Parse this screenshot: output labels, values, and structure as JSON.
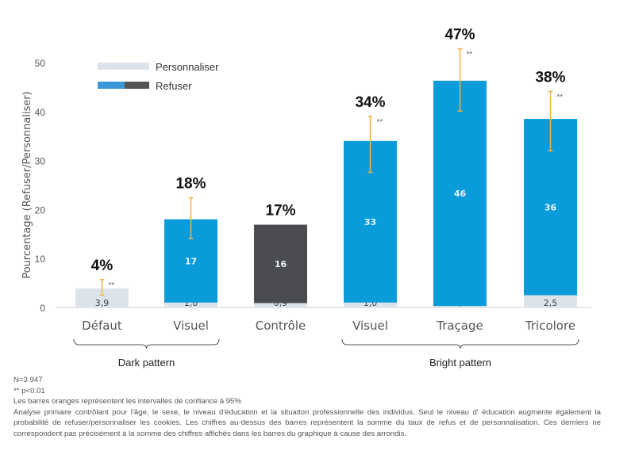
{
  "chart_data": {
    "type": "bar",
    "stacked": true,
    "ylabel": "Pourcentage (Refuser/Personnaliser)",
    "ylim": [
      0,
      50
    ],
    "yticks": [
      0,
      10,
      20,
      30,
      40,
      50
    ],
    "grid": false,
    "legend_position": "top-left",
    "categories": [
      "Défaut",
      "Visuel",
      "Contrôle",
      "Visuel",
      "Traçage",
      "Tricolore"
    ],
    "groups": [
      {
        "label": "Dark pattern",
        "categories": [
          0,
          1
        ]
      },
      {
        "label": "Bright pattern",
        "categories": [
          3,
          4,
          5
        ]
      }
    ],
    "series": [
      {
        "name": "Personnaliser",
        "color": "#dce3ea",
        "values": [
          3.9,
          1.0,
          0.9,
          1.0,
          0.3,
          2.5
        ],
        "labels": [
          "3,9",
          "1,0",
          "0,9",
          "1,0",
          "0,3",
          "2,5"
        ]
      },
      {
        "name": "Refuser",
        "color": "#0a9bdb",
        "control_color": "#4a4c50",
        "values": [
          null,
          17,
          16,
          33,
          46,
          36
        ],
        "labels": [
          "",
          "17",
          "16",
          "33",
          "46",
          "36"
        ]
      }
    ],
    "totals": [
      "4%",
      "18%",
      "17%",
      "34%",
      "47%",
      "38%"
    ],
    "significance": [
      "**",
      "",
      "",
      "**",
      "**",
      "**"
    ],
    "error_bars": [
      [
        2.5,
        5.7
      ],
      [
        14.1,
        22.4
      ],
      null,
      [
        27.6,
        39.0
      ],
      [
        40.1,
        52.8
      ],
      [
        32.0,
        44.1
      ]
    ],
    "error_bar_color": "#f5b041"
  },
  "notes": {
    "n": "N=3 947",
    "p": "** p<0.01",
    "ci": "Les barres oranges représentent les intervalles de confiance à 95%",
    "analysis": "Analyse primaire contrôlant pour l'âge, le sexe, le niveau d'éducation et la situation professionnelle des individus. Seul le niveau d' éducation augmente également la probabilité de refuser/personnaliser les cookies. Les chiffres au-dessus des barres représentent la somme du taux de refus et de personnalisation. Ces derniers ne correspondent pas précisément à la somme des chiffres affichés dans les barres du graphique à cause des arrondis."
  }
}
